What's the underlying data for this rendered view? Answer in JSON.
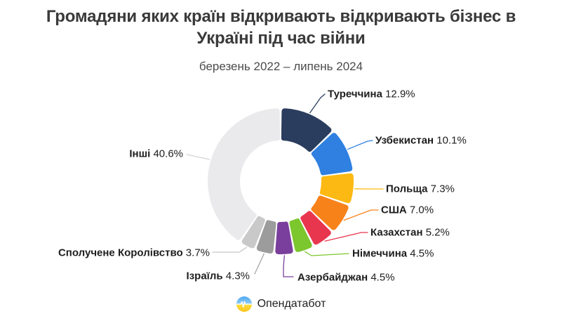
{
  "chart_data": {
    "type": "pie",
    "donut": true,
    "direction": "clockwise",
    "start_angle": "top",
    "unit": "%",
    "title": "Громадяни яких країн відкривають відкривають бізнес в Україні під час війни",
    "subtitle": "березень 2022 – липень 2024",
    "slices": [
      {
        "label": "Туреччина",
        "value": 12.9,
        "color": "#2b3d5e"
      },
      {
        "label": "Узбекистан",
        "value": 10.1,
        "color": "#2f80e0"
      },
      {
        "label": "Польща",
        "value": 7.3,
        "color": "#fdb913"
      },
      {
        "label": "США",
        "value": 7.0,
        "color": "#f8821a"
      },
      {
        "label": "Казахстан",
        "value": 5.2,
        "color": "#e8364f"
      },
      {
        "label": "Німеччина",
        "value": 4.5,
        "color": "#7cc62e"
      },
      {
        "label": "Азербайджан",
        "value": 4.5,
        "color": "#7a3f9c"
      },
      {
        "label": "Ізраїль",
        "value": 4.3,
        "color": "#9c9c9c"
      },
      {
        "label": "Сполучене Королівство",
        "value": 3.7,
        "color": "#c9c9c9"
      },
      {
        "label": "Інші",
        "value": 40.6,
        "color": "#eaeaec"
      }
    ]
  },
  "footer": {
    "brand": "Опендатабот"
  },
  "colors": {
    "background": "#ffffff",
    "title_text": "#3a3a3a",
    "label_text": "#1d1d1d"
  }
}
